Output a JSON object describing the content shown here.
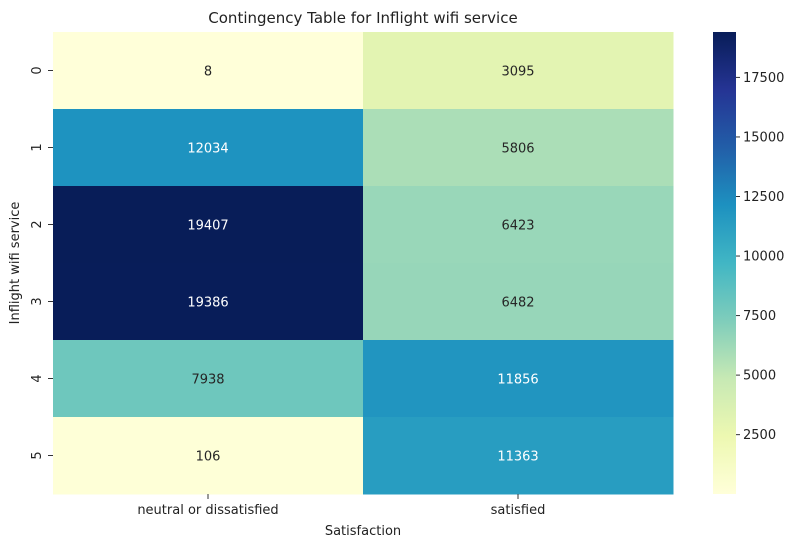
{
  "chart_data": {
    "type": "heatmap",
    "title": "Contingency Table for Inflight wifi service",
    "xlabel": "Satisfaction",
    "ylabel": "Inflight wifi service",
    "x_categories": [
      "neutral or dissatisfied",
      "satisfied"
    ],
    "y_categories": [
      "0",
      "1",
      "2",
      "3",
      "4",
      "5"
    ],
    "values": [
      [
        8,
        3095
      ],
      [
        12034,
        5806
      ],
      [
        19407,
        6423
      ],
      [
        19386,
        6482
      ],
      [
        7938,
        11856
      ],
      [
        106,
        11363
      ]
    ],
    "colormap": "YlGnBu",
    "color_range": [
      8,
      19407
    ],
    "colorbar_ticks": [
      2500,
      5000,
      7500,
      10000,
      12500,
      15000,
      17500
    ]
  }
}
